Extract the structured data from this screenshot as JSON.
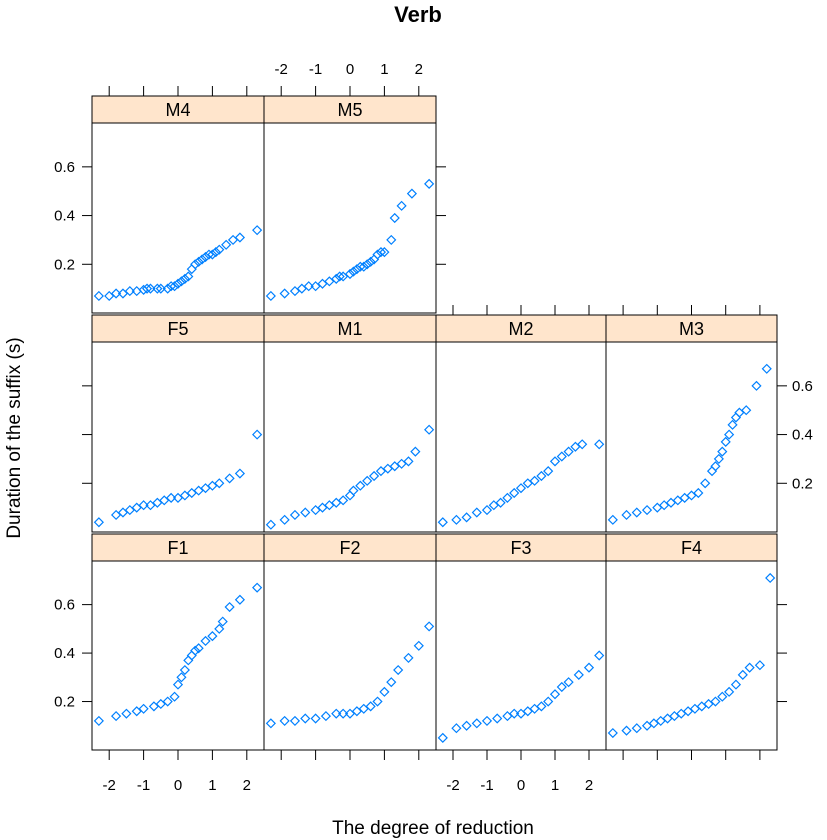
{
  "chart_data": {
    "type": "scatter",
    "title": "Verb",
    "xlabel": "The degree of reduction",
    "ylabel": "Duration of the suffix (s)",
    "xlim": [
      -2.5,
      2.5
    ],
    "ylim": [
      0.0,
      0.78
    ],
    "x_ticks": [
      "-2",
      "-1",
      "0",
      "1",
      "2"
    ],
    "y_ticks": [
      "0.2",
      "0.4",
      "0.6"
    ],
    "marker_color": "#0080ff",
    "strip_color": "#ffe5cc",
    "panels": [
      {
        "name": "M4",
        "row": 0,
        "col": 0,
        "x": [
          -2.3,
          -2.0,
          -1.8,
          -1.6,
          -1.4,
          -1.2,
          -1.0,
          -0.9,
          -0.8,
          -0.6,
          -0.5,
          -0.3,
          -0.2,
          -0.1,
          0.0,
          0.1,
          0.2,
          0.3,
          0.4,
          0.5,
          0.6,
          0.7,
          0.8,
          0.9,
          1.0,
          1.1,
          1.2,
          1.4,
          1.6,
          1.8,
          2.3
        ],
        "y": [
          0.07,
          0.07,
          0.08,
          0.08,
          0.09,
          0.09,
          0.095,
          0.1,
          0.1,
          0.1,
          0.1,
          0.1,
          0.11,
          0.11,
          0.12,
          0.13,
          0.14,
          0.15,
          0.18,
          0.2,
          0.21,
          0.22,
          0.23,
          0.24,
          0.24,
          0.25,
          0.26,
          0.28,
          0.3,
          0.31,
          0.34
        ]
      },
      {
        "name": "M5",
        "row": 0,
        "col": 1,
        "x": [
          -2.3,
          -1.9,
          -1.6,
          -1.4,
          -1.2,
          -1.0,
          -0.8,
          -0.6,
          -0.4,
          -0.3,
          -0.2,
          0.0,
          0.1,
          0.2,
          0.3,
          0.4,
          0.5,
          0.6,
          0.7,
          0.8,
          0.9,
          1.0,
          1.2,
          1.3,
          1.5,
          1.8,
          2.3
        ],
        "y": [
          0.07,
          0.08,
          0.09,
          0.1,
          0.11,
          0.11,
          0.12,
          0.13,
          0.14,
          0.15,
          0.15,
          0.16,
          0.17,
          0.18,
          0.19,
          0.19,
          0.2,
          0.21,
          0.22,
          0.24,
          0.25,
          0.25,
          0.3,
          0.39,
          0.44,
          0.49,
          0.53
        ]
      },
      {
        "name": "F5",
        "row": 1,
        "col": 0,
        "x": [
          -2.3,
          -1.8,
          -1.6,
          -1.4,
          -1.2,
          -1.0,
          -0.8,
          -0.6,
          -0.4,
          -0.2,
          0.0,
          0.2,
          0.4,
          0.6,
          0.8,
          1.0,
          1.2,
          1.5,
          1.8,
          2.3
        ],
        "y": [
          0.04,
          0.07,
          0.08,
          0.09,
          0.1,
          0.11,
          0.11,
          0.12,
          0.13,
          0.14,
          0.14,
          0.15,
          0.16,
          0.17,
          0.18,
          0.19,
          0.2,
          0.22,
          0.24,
          0.4
        ]
      },
      {
        "name": "M1",
        "row": 1,
        "col": 1,
        "x": [
          -2.3,
          -1.9,
          -1.6,
          -1.3,
          -1.0,
          -0.8,
          -0.6,
          -0.4,
          -0.2,
          0.0,
          0.1,
          0.3,
          0.5,
          0.7,
          0.9,
          1.1,
          1.3,
          1.5,
          1.7,
          1.9,
          2.3
        ],
        "y": [
          0.03,
          0.05,
          0.07,
          0.08,
          0.09,
          0.1,
          0.11,
          0.12,
          0.13,
          0.15,
          0.17,
          0.19,
          0.21,
          0.23,
          0.25,
          0.26,
          0.27,
          0.28,
          0.29,
          0.33,
          0.42
        ]
      },
      {
        "name": "M2",
        "row": 1,
        "col": 2,
        "x": [
          -2.3,
          -1.9,
          -1.6,
          -1.3,
          -1.0,
          -0.8,
          -0.6,
          -0.4,
          -0.2,
          0.0,
          0.2,
          0.4,
          0.6,
          0.8,
          1.0,
          1.2,
          1.4,
          1.6,
          1.8,
          2.3
        ],
        "y": [
          0.04,
          0.05,
          0.06,
          0.08,
          0.09,
          0.11,
          0.12,
          0.14,
          0.16,
          0.18,
          0.2,
          0.21,
          0.23,
          0.25,
          0.29,
          0.31,
          0.33,
          0.35,
          0.36,
          0.36
        ]
      },
      {
        "name": "M3",
        "row": 1,
        "col": 3,
        "x": [
          -2.3,
          -1.9,
          -1.6,
          -1.3,
          -1.0,
          -0.8,
          -0.6,
          -0.4,
          -0.2,
          0.0,
          0.2,
          0.4,
          0.6,
          0.7,
          0.8,
          0.9,
          1.0,
          1.1,
          1.2,
          1.3,
          1.4,
          1.6,
          1.9,
          2.2
        ],
        "y": [
          0.05,
          0.07,
          0.08,
          0.09,
          0.1,
          0.11,
          0.12,
          0.13,
          0.14,
          0.15,
          0.16,
          0.2,
          0.25,
          0.27,
          0.3,
          0.33,
          0.37,
          0.4,
          0.44,
          0.47,
          0.49,
          0.5,
          0.6,
          0.67
        ]
      },
      {
        "name": "F1",
        "row": 2,
        "col": 0,
        "x": [
          -2.3,
          -1.8,
          -1.5,
          -1.2,
          -1.0,
          -0.7,
          -0.5,
          -0.3,
          -0.1,
          0.0,
          0.1,
          0.2,
          0.3,
          0.4,
          0.5,
          0.6,
          0.8,
          1.0,
          1.2,
          1.3,
          1.5,
          1.8,
          2.3
        ],
        "y": [
          0.12,
          0.14,
          0.15,
          0.16,
          0.17,
          0.18,
          0.19,
          0.2,
          0.22,
          0.27,
          0.3,
          0.33,
          0.37,
          0.39,
          0.41,
          0.42,
          0.45,
          0.47,
          0.5,
          0.53,
          0.59,
          0.62,
          0.67
        ]
      },
      {
        "name": "F2",
        "row": 2,
        "col": 1,
        "x": [
          -2.3,
          -1.9,
          -1.6,
          -1.3,
          -1.0,
          -0.7,
          -0.4,
          -0.2,
          0.0,
          0.2,
          0.4,
          0.6,
          0.8,
          1.0,
          1.2,
          1.4,
          1.7,
          2.0,
          2.3
        ],
        "y": [
          0.11,
          0.12,
          0.12,
          0.13,
          0.13,
          0.14,
          0.15,
          0.15,
          0.15,
          0.16,
          0.17,
          0.18,
          0.2,
          0.24,
          0.28,
          0.33,
          0.38,
          0.43,
          0.51
        ]
      },
      {
        "name": "F3",
        "row": 2,
        "col": 2,
        "x": [
          -2.3,
          -1.9,
          -1.6,
          -1.3,
          -1.0,
          -0.7,
          -0.4,
          -0.2,
          0.0,
          0.2,
          0.4,
          0.6,
          0.8,
          1.0,
          1.2,
          1.4,
          1.7,
          2.0,
          2.3
        ],
        "y": [
          0.05,
          0.09,
          0.1,
          0.11,
          0.12,
          0.13,
          0.14,
          0.15,
          0.15,
          0.16,
          0.17,
          0.18,
          0.2,
          0.23,
          0.26,
          0.28,
          0.31,
          0.34,
          0.39
        ]
      },
      {
        "name": "F4",
        "row": 2,
        "col": 3,
        "x": [
          -2.3,
          -1.9,
          -1.6,
          -1.3,
          -1.1,
          -0.9,
          -0.7,
          -0.5,
          -0.3,
          -0.1,
          0.1,
          0.3,
          0.5,
          0.7,
          0.9,
          1.1,
          1.3,
          1.5,
          1.7,
          2.0,
          2.3
        ],
        "y": [
          0.07,
          0.08,
          0.09,
          0.1,
          0.11,
          0.12,
          0.13,
          0.14,
          0.15,
          0.16,
          0.17,
          0.18,
          0.19,
          0.2,
          0.22,
          0.24,
          0.27,
          0.31,
          0.34,
          0.35,
          0.71
        ]
      }
    ]
  }
}
